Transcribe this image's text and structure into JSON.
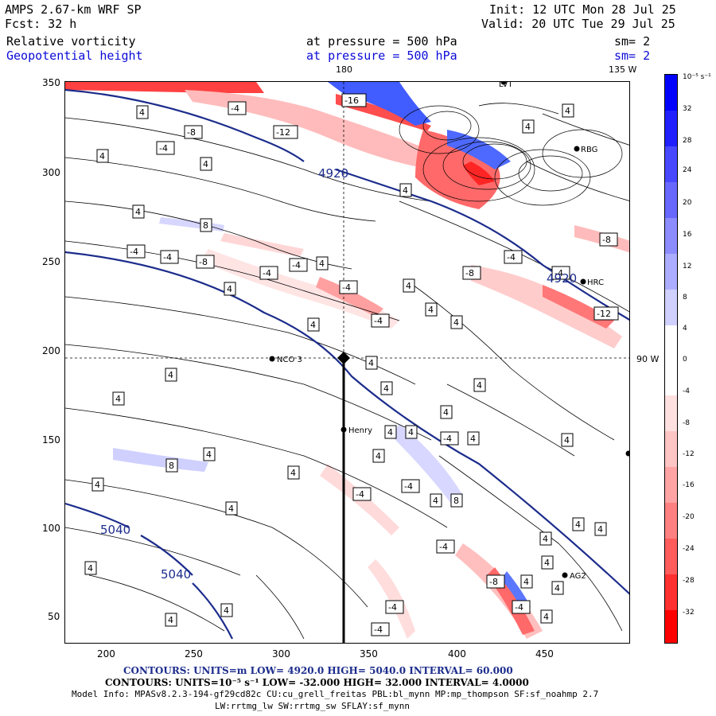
{
  "header": {
    "left": {
      "line1": "AMPS 2.67-km WRF SP",
      "line2": "Fcst:   32 h",
      "field1": "Relative vorticity",
      "field2": "Geopotential height"
    },
    "right": {
      "init": "Init: 12 UTC Mon 28 Jul 25",
      "valid": "Valid: 20 UTC Tue 29 Jul 25",
      "sm1": "sm= 2",
      "sm2": "sm= 2"
    },
    "center": {
      "pressure1": "at pressure =  500 hPa",
      "pressure2": "at pressure =  500 hPa"
    }
  },
  "map": {
    "meridian_labels": {
      "lon180": "180",
      "lon135w": "135 W",
      "lon90w": "90 W"
    },
    "stations": [
      {
        "name": "LVT"
      },
      {
        "name": "RBG"
      },
      {
        "name": "HRC"
      },
      {
        "name": "NCO 3"
      },
      {
        "name": "Henry"
      },
      {
        "name": "AG2"
      }
    ],
    "height_labels": [
      "4920",
      "4920",
      "5040",
      "5040"
    ],
    "vort_labels": [
      "4",
      "-4",
      "-8",
      "-12",
      "-16",
      "8",
      "4",
      "-4"
    ],
    "x_ticks": [
      "200",
      "250",
      "300",
      "350",
      "400",
      "450"
    ],
    "y_ticks": [
      "350",
      "300",
      "250",
      "200",
      "150",
      "100",
      "50"
    ]
  },
  "colorbar": {
    "unit": "10⁻⁵ s⁻¹",
    "labels": [
      "32",
      "28",
      "24",
      "20",
      "16",
      "12",
      "8",
      "4",
      "0",
      "-4",
      "-8",
      "-12",
      "-16",
      "-20",
      "-24",
      "-28",
      "-32"
    ],
    "colors": {
      "pos_strong": "#0000ff",
      "pos_weak": "#c8c8ff",
      "neg_weak": "#ffd7d7",
      "neg_strong": "#ff0000"
    }
  },
  "footer": {
    "line1": "CONTOURS:  UNITS=m  LOW=  4920.0          HIGH=  5040.0          INTERVAL=   60.000",
    "line2": "CONTOURS:  UNITS=10⁻⁵ s⁻¹  LOW=  -32.000        HIGH=  32.000        INTERVAL=   4.0000",
    "line3": "Model Info: MPASv8.2.3-194-gf29cd82c CU:cu_grell_freitas PBL:bl_mynn MP:mp_thompson SF:sf_noahmp 2.7",
    "line4": "LW:rrtmg_lw SW:rrtmg_sw SFLAY:sf_mynn"
  }
}
